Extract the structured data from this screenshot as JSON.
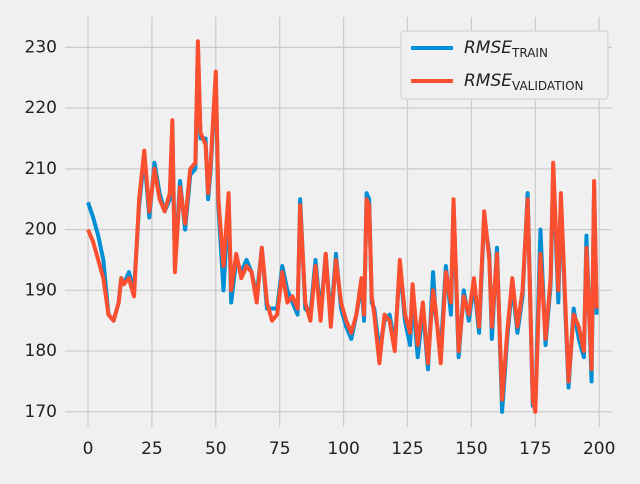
{
  "chart_data": {
    "type": "line",
    "x": [
      0,
      2,
      4,
      6,
      8,
      10,
      12,
      13,
      14,
      16,
      18,
      20,
      22,
      24,
      26,
      28,
      30,
      32,
      33,
      34,
      36,
      38,
      40,
      42,
      43,
      44,
      46,
      47,
      48,
      50,
      51,
      53,
      55,
      56,
      58,
      60,
      62,
      64,
      66,
      68,
      70,
      72,
      74,
      76,
      78,
      80,
      82,
      83,
      85,
      87,
      89,
      91,
      93,
      95,
      97,
      99,
      101,
      103,
      105,
      107,
      108,
      109,
      110,
      111,
      112,
      114,
      116,
      118,
      120,
      122,
      124,
      126,
      127,
      129,
      131,
      133,
      135,
      136,
      138,
      140,
      142,
      143,
      145,
      147,
      149,
      151,
      153,
      155,
      157,
      158,
      160,
      162,
      164,
      166,
      168,
      170,
      172,
      174,
      175,
      177,
      179,
      181,
      182,
      184,
      185,
      187,
      188,
      190,
      192,
      194,
      195,
      197,
      198,
      199
    ],
    "series": [
      {
        "name": "RMSE",
        "name_sub": "TRAIN",
        "color": "#008fd5",
        "values": [
          204.5,
          202,
          199,
          195,
          186,
          185,
          188,
          192,
          191,
          193,
          190,
          204,
          212,
          202,
          211,
          206,
          203,
          205,
          217,
          194,
          208,
          200,
          209,
          210,
          230,
          215,
          215,
          205,
          210,
          225,
          204,
          190,
          205,
          188,
          195,
          193,
          195,
          193,
          189,
          197,
          187,
          187,
          187,
          194,
          190,
          188,
          186,
          205,
          187,
          186,
          195,
          186,
          196,
          185,
          196,
          187,
          184,
          182,
          186,
          191,
          185,
          206,
          205,
          188,
          187,
          180,
          185,
          186,
          181,
          194,
          185,
          181,
          189,
          179,
          187,
          177,
          193,
          186,
          180,
          194,
          186,
          204,
          179,
          190,
          185,
          191,
          183,
          202,
          196,
          182,
          197,
          170,
          182,
          191,
          183,
          189,
          206,
          171,
          171,
          200,
          181,
          191,
          210,
          188,
          205,
          184,
          174,
          187,
          182,
          179,
          199,
          175,
          207,
          186
        ]
      },
      {
        "name": "RMSE",
        "name_sub": "VALIDATION",
        "color": "#fc4f30",
        "values": [
          200,
          198,
          195,
          192,
          186,
          185,
          188,
          192,
          191,
          192,
          189,
          205,
          213,
          203,
          210,
          205,
          203,
          206,
          218,
          193,
          207,
          201,
          210,
          211,
          231,
          216,
          214,
          206,
          211,
          226,
          205,
          194,
          206,
          190,
          196,
          192,
          194,
          193,
          188,
          197,
          188,
          185,
          186,
          193,
          188,
          189,
          187,
          204,
          188,
          185,
          194,
          185,
          196,
          184,
          195,
          188,
          185,
          183,
          186,
          192,
          186,
          205,
          204,
          189,
          186,
          178,
          186,
          185,
          180,
          195,
          186,
          183,
          191,
          181,
          188,
          178,
          190,
          187,
          178,
          193,
          188,
          205,
          180,
          189,
          186,
          192,
          184,
          203,
          195,
          184,
          196,
          172,
          183,
          192,
          184,
          190,
          205,
          172,
          170,
          196,
          182,
          192,
          211,
          190,
          206,
          185,
          175,
          186,
          184,
          180,
          197,
          177,
          208,
          187
        ]
      }
    ],
    "xlim": [
      -9,
      205
    ],
    "ylim": [
      167.5,
      235
    ],
    "xticks": [
      0,
      25,
      50,
      75,
      100,
      125,
      150,
      175,
      200
    ],
    "yticks": [
      170,
      180,
      190,
      200,
      210,
      220,
      230
    ],
    "grid": true,
    "legend": "upper right"
  }
}
